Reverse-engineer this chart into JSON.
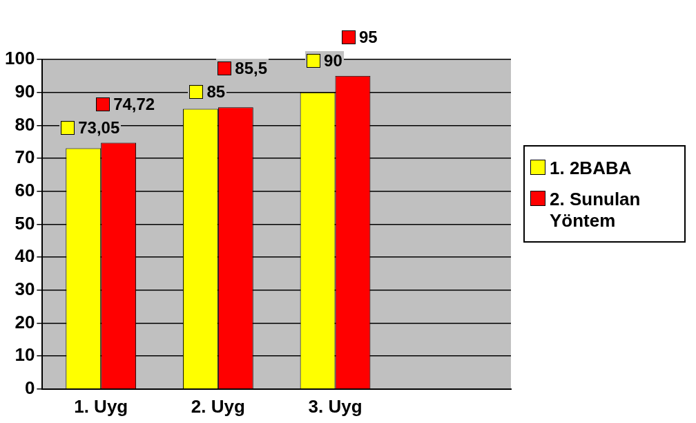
{
  "chart_data": {
    "type": "bar",
    "categories": [
      "1. Uyg",
      "2. Uyg",
      "3. Uyg",
      null
    ],
    "series": [
      {
        "name": "1. 2BABA",
        "color": "#ffff00",
        "values": [
          73.05,
          85,
          90,
          null
        ],
        "value_labels": [
          "73,05",
          "85",
          "90",
          null
        ]
      },
      {
        "name": "2. Sunulan Yöntem",
        "color": "#ff0000",
        "values": [
          74.72,
          85.5,
          95,
          null
        ],
        "value_labels": [
          "74,72",
          "85,5",
          "95",
          null
        ]
      }
    ],
    "ylim": [
      0,
      100
    ],
    "yticks": [
      0,
      10,
      20,
      30,
      40,
      50,
      60,
      70,
      80,
      90,
      100
    ],
    "grid": "y",
    "legend": "right"
  }
}
